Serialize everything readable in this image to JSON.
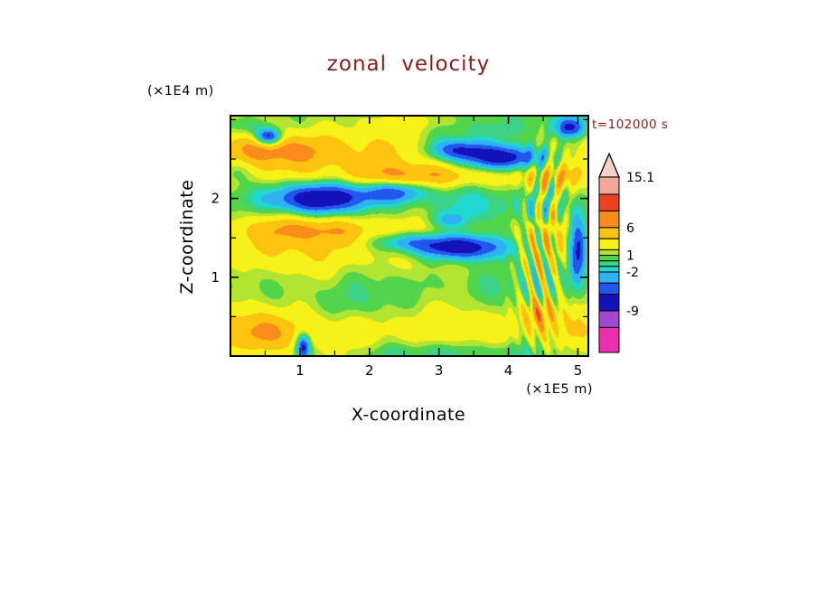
{
  "title": {
    "text": "zonal velocity",
    "color": "#8b1c1c"
  },
  "time": {
    "text": "t=102000 s",
    "color": "#8b1c1c"
  },
  "axes": {
    "x": {
      "label": "X-coordinate",
      "unit": "(×1E5 m)",
      "range": [
        0,
        5.15
      ],
      "major_ticks": [
        1,
        2,
        3,
        4,
        5
      ],
      "minor_ticks": [
        0.5,
        1.5,
        2.5,
        3.5,
        4.5
      ]
    },
    "z": {
      "label": "Z-coordinate",
      "unit": "(×1E4 m)",
      "range": [
        0,
        3.05
      ],
      "major_ticks": [
        1,
        2
      ],
      "minor_ticks": [
        0.5,
        1.5,
        2.5,
        3.0
      ]
    }
  },
  "colorbar": {
    "min": -16.5,
    "max": 15.1,
    "tip_color": "#f8d0c8",
    "labels": [
      {
        "text": "15.1",
        "value": 15.1
      },
      {
        "text": "6",
        "value": 6
      },
      {
        "text": "1",
        "value": 1
      },
      {
        "text": "-2",
        "value": -2
      },
      {
        "text": "-9",
        "value": -9
      }
    ]
  },
  "chart_data": {
    "type": "heatmap",
    "title": "zonal velocity",
    "xlabel": "X-coordinate (×1E5 m)",
    "ylabel": "Z-coordinate (×1E4 m)",
    "time_annotation": "t=102000 s",
    "x_range": [
      0,
      5.15
    ],
    "z_range": [
      0,
      3.05
    ],
    "colorbar_tick_labels": [
      "15.1",
      "6",
      "1",
      "-2",
      "-9"
    ],
    "contour_levels": [
      -12,
      -9,
      -6,
      -4,
      -2,
      -1,
      0,
      1,
      2,
      4,
      6,
      9,
      12
    ],
    "palette": [
      "#ec2fb0",
      "#a348d2",
      "#1212b8",
      "#2256ee",
      "#2fb2f2",
      "#1fd9d0",
      "#3bd286",
      "#52d44b",
      "#b2e432",
      "#f6f218",
      "#fcc40f",
      "#fa8c1b",
      "#ee4023",
      "#f5a69b"
    ],
    "field": {
      "base": 2.3,
      "modes": [
        {
          "a": 1.3,
          "kx": 0,
          "kz": 0.9,
          "p": -1.85
        },
        {
          "a": 0.55,
          "kx": 0.18,
          "kz": 0,
          "p": -1.13
        },
        {
          "a": 0.45,
          "kx": 0.55,
          "kz": 0.25,
          "p": 0.7
        },
        {
          "a": 0.35,
          "kx": 1.0,
          "kz": -0.6,
          "p": 2.1
        },
        {
          "a": 0.3,
          "kx": 1.6,
          "kz": 1.1,
          "p": 4.0
        }
      ],
      "blobs": [
        {
          "x": 3.95,
          "z": 2.52,
          "sx": 0.62,
          "sz": 0.17,
          "a": -11
        },
        {
          "x": 3.25,
          "z": 2.62,
          "sx": 0.4,
          "sz": 0.13,
          "a": -7
        },
        {
          "x": 1.25,
          "z": 2.0,
          "sx": 0.75,
          "sz": 0.2,
          "a": -10
        },
        {
          "x": 2.35,
          "z": 2.08,
          "sx": 0.45,
          "sz": 0.13,
          "a": -6
        },
        {
          "x": 3.3,
          "z": 1.38,
          "sx": 0.7,
          "sz": 0.16,
          "a": -11
        },
        {
          "x": 2.5,
          "z": 1.45,
          "sx": 0.45,
          "sz": 0.12,
          "a": -5
        },
        {
          "x": 0.55,
          "z": 2.78,
          "sx": 0.18,
          "sz": 0.1,
          "a": -10
        },
        {
          "x": 1.05,
          "z": 0.12,
          "sx": 0.1,
          "sz": 0.16,
          "a": -9
        },
        {
          "x": 5.0,
          "z": 1.35,
          "sx": 0.13,
          "sz": 0.4,
          "a": -10
        },
        {
          "x": 4.9,
          "z": 2.9,
          "sx": 0.22,
          "sz": 0.13,
          "a": -7
        },
        {
          "x": 0.45,
          "z": 0.3,
          "sx": 0.38,
          "sz": 0.27,
          "a": 3.5
        },
        {
          "x": 0.8,
          "z": 2.62,
          "sx": 0.8,
          "sz": 0.2,
          "a": 3.0
        },
        {
          "x": 2.8,
          "z": 2.28,
          "sx": 1.3,
          "sz": 0.15,
          "a": 4.0
        },
        {
          "x": 4.75,
          "z": 2.27,
          "sx": 0.4,
          "sz": 0.18,
          "a": 3.0
        },
        {
          "x": 1.2,
          "z": 1.62,
          "sx": 0.95,
          "sz": 0.16,
          "a": 3.0
        },
        {
          "x": 1.6,
          "z": 0.6,
          "sx": 0.75,
          "sz": 0.3,
          "a": -2.2
        },
        {
          "x": 3.0,
          "z": 0.05,
          "sx": 1.7,
          "sz": 0.16,
          "a": -2.2
        },
        {
          "x": 3.6,
          "z": 1.85,
          "sx": 0.85,
          "sz": 0.28,
          "a": -1.6
        },
        {
          "x": 3.15,
          "z": 1.72,
          "sx": 0.3,
          "sz": 0.1,
          "a": -3.0
        },
        {
          "x": 2.7,
          "z": 2.98,
          "sx": 0.5,
          "sz": 0.14,
          "a": 2.5
        },
        {
          "x": 0.3,
          "z": 2.9,
          "sx": 0.35,
          "sz": 0.12,
          "a": -2.8
        },
        {
          "x": 3.8,
          "z": 2.85,
          "sx": 0.9,
          "sz": 0.15,
          "a": -2.0
        },
        {
          "x": 0.1,
          "z": 2.35,
          "sx": 0.25,
          "sz": 0.15,
          "a": -2.5
        },
        {
          "x": 4.45,
          "z": 0.55,
          "sx": 0.2,
          "sz": 0.2,
          "a": 5.0
        },
        {
          "x": 4.45,
          "z": 1.05,
          "sx": 0.3,
          "sz": 0.85,
          "a": 5.0,
          "fx": 5.0,
          "fz": 1.5,
          "p": 0.5
        },
        {
          "x": 4.55,
          "z": 2.1,
          "sx": 0.28,
          "sz": 0.55,
          "a": 4.5,
          "fx": 4.5,
          "fz": -1.2,
          "p": 1.8
        }
      ]
    }
  }
}
